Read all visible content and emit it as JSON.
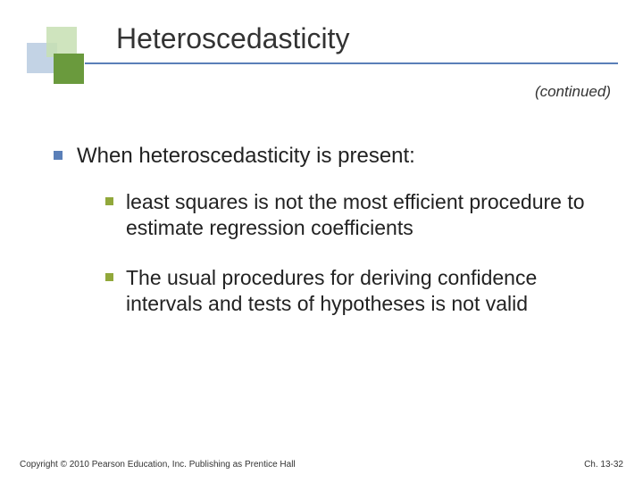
{
  "colors": {
    "logo_back": "#b8cbe0",
    "logo_mid": "#c7dfb3",
    "logo_front": "#6a9a3d",
    "rule": "#5a7fb8",
    "bullet1": "#5a7fb8",
    "bullet2": "#91a83b",
    "text": "#333333"
  },
  "title": "Heteroscedasticity",
  "continued": "(continued)",
  "main": {
    "point": "When heteroscedasticity is present:",
    "subpoints": [
      "least squares is not the most efficient procedure to estimate regression coefficients",
      "The usual procedures for deriving confidence intervals and tests of hypotheses is not valid"
    ]
  },
  "footer": {
    "copyright": "Copyright © 2010 Pearson Education, Inc. Publishing as Prentice Hall",
    "page": "Ch. 13-32"
  }
}
